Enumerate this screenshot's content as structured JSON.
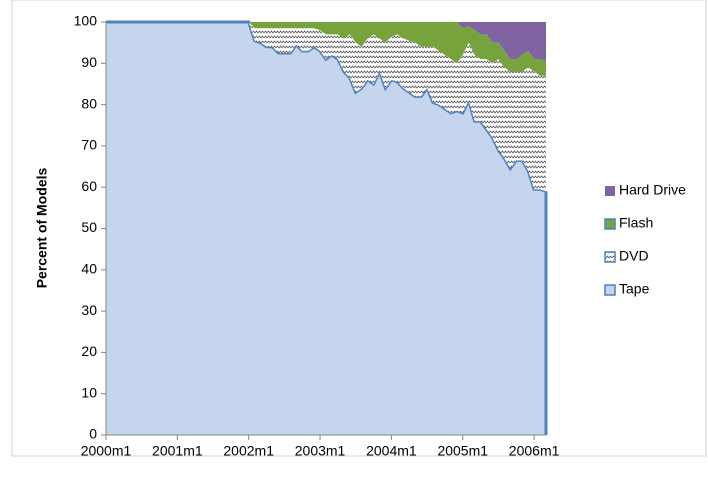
{
  "chart_data": {
    "type": "stacked_area",
    "y_label": "Percent of Models",
    "categories": [
      "2000m1",
      null,
      null,
      null,
      null,
      null,
      null,
      null,
      null,
      null,
      null,
      null,
      "2001m1",
      null,
      null,
      null,
      null,
      null,
      null,
      null,
      null,
      null,
      null,
      null,
      "2002m1",
      null,
      null,
      null,
      null,
      null,
      null,
      null,
      null,
      null,
      null,
      null,
      "2003m1",
      null,
      null,
      null,
      null,
      null,
      null,
      null,
      null,
      null,
      null,
      null,
      "2004m1",
      null,
      null,
      null,
      null,
      null,
      null,
      null,
      null,
      null,
      null,
      null,
      "2005m1",
      null,
      null,
      null,
      null,
      null,
      null,
      null,
      null,
      null,
      null,
      null,
      "2006m1",
      null,
      null
    ],
    "series": [
      {
        "name": "Tape",
        "color": "#c6d5ee",
        "values": [
          100,
          100,
          100,
          100,
          100,
          100,
          100,
          100,
          100,
          100,
          100,
          100,
          100,
          100,
          100,
          100,
          100,
          100,
          100,
          100,
          100,
          100,
          100,
          100,
          100,
          95.5,
          95,
          94,
          94,
          92.5,
          92.5,
          92.5,
          94.5,
          93,
          93,
          94,
          93,
          91,
          92,
          91,
          88,
          86.5,
          83,
          84,
          86,
          85,
          88,
          84,
          86,
          85.5,
          84,
          83,
          82,
          82,
          84,
          80.5,
          80,
          79,
          78,
          78.5,
          78,
          81,
          76,
          76,
          74,
          72,
          69,
          67,
          64.5,
          66.5,
          66.5,
          64,
          59.5,
          59.5,
          59
        ]
      },
      {
        "name": "DVD",
        "color": "#ffffff",
        "values": [
          0,
          0,
          0,
          0,
          0,
          0,
          0,
          0,
          0,
          0,
          0,
          0,
          0,
          0,
          0,
          0,
          0,
          0,
          0,
          0,
          0,
          0,
          0,
          0,
          0,
          3,
          3.5,
          4.5,
          4.5,
          6,
          6,
          6,
          4,
          5.5,
          5.5,
          4.5,
          5,
          6,
          5,
          6,
          8,
          10.5,
          12,
          10,
          10,
          12,
          8,
          11,
          10.5,
          11.5,
          12,
          12.5,
          13,
          12,
          10,
          13.5,
          13,
          13,
          13,
          11.5,
          14,
          14,
          16,
          15,
          17,
          18,
          22,
          22,
          23.5,
          21.5,
          21.5,
          25,
          28.5,
          27.5,
          28
        ]
      },
      {
        "name": "Flash",
        "color": "#77a33c",
        "values": [
          0,
          0,
          0,
          0,
          0,
          0,
          0,
          0,
          0,
          0,
          0,
          0,
          0,
          0,
          0,
          0,
          0,
          0,
          0,
          0,
          0,
          0,
          0,
          0,
          0,
          1.5,
          1.5,
          1.5,
          1.5,
          1.5,
          1.5,
          1.5,
          1.5,
          1.5,
          1.5,
          1.5,
          2,
          3,
          3,
          3,
          4,
          3,
          5,
          6,
          4,
          3,
          4,
          5,
          3.5,
          3,
          4,
          4.5,
          5,
          6,
          6,
          6,
          7,
          8,
          9,
          10,
          6.5,
          4,
          6,
          6,
          6,
          5,
          4,
          4,
          3,
          3,
          4,
          4,
          3,
          4,
          3.5
        ]
      },
      {
        "name": "Hard Drive",
        "color": "#8064a2",
        "values": [
          0,
          0,
          0,
          0,
          0,
          0,
          0,
          0,
          0,
          0,
          0,
          0,
          0,
          0,
          0,
          0,
          0,
          0,
          0,
          0,
          0,
          0,
          0,
          0,
          0,
          0,
          0,
          0,
          0,
          0,
          0,
          0,
          0,
          0,
          0,
          0,
          0,
          0,
          0,
          0,
          0,
          0,
          0,
          0,
          0,
          0,
          0,
          0,
          0,
          0,
          0,
          0,
          0,
          0,
          0,
          0,
          0,
          0,
          0,
          0,
          1.5,
          1,
          2,
          3,
          3,
          5,
          5,
          7,
          9,
          9,
          8,
          7,
          9,
          9,
          9.5
        ]
      }
    ],
    "ylim": [
      0,
      100
    ],
    "yticks": [
      0,
      10,
      20,
      30,
      40,
      50,
      60,
      70,
      80,
      90,
      100
    ],
    "legend": "right"
  }
}
